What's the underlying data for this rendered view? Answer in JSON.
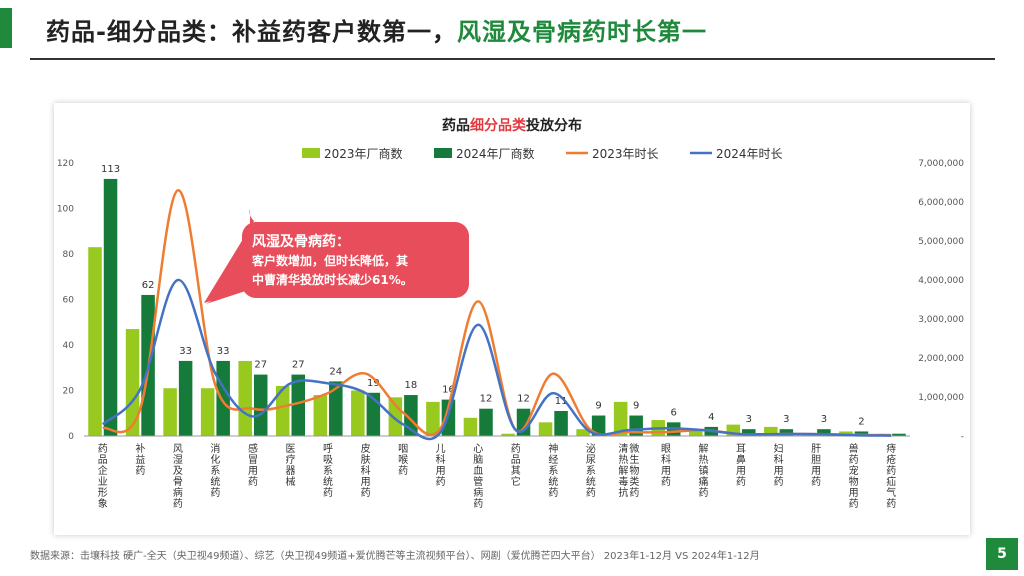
{
  "header": {
    "title_black": "药品-细分品类：补益药客户数第一，",
    "title_green": "风湿及骨病药时长第一",
    "title_green_color": "#1f8a3b"
  },
  "chart_data": {
    "type": "bar",
    "title_pre": "药品",
    "title_red": "细分品类",
    "title_post": "投放分布",
    "title_red_color": "#e03a3e",
    "legend": [
      {
        "label": "2023年厂商数",
        "color": "#97c91f",
        "kind": "bar"
      },
      {
        "label": "2024年厂商数",
        "color": "#157a3a",
        "kind": "bar"
      },
      {
        "label": "2023年时长",
        "color": "#ee7d31",
        "kind": "line"
      },
      {
        "label": "2024年时长",
        "color": "#4472c4",
        "kind": "line"
      }
    ],
    "categories": [
      "药品企业形象",
      "补益药",
      "风湿及骨病药",
      "消化系统药",
      "感冒用药",
      "医疗器械",
      "呼吸系统药",
      "皮肤科用药",
      "咽喉药",
      "儿科用药",
      "心脑血管病药",
      "药品其它",
      "神经系统药",
      "泌尿系统药",
      "清热解毒抗微生物类药",
      "眼科用药",
      "解热镇痛药",
      "耳鼻用药",
      "妇科用药",
      "肝胆用药",
      "兽药宠物用药",
      "痔疮药疝气药"
    ],
    "series": [
      {
        "name": "2023年厂商数",
        "axis": "left",
        "type": "bar",
        "color": "#97c91f",
        "values": [
          83,
          47,
          21,
          21,
          33,
          22,
          18,
          20,
          17,
          15,
          8,
          1,
          6,
          3,
          15,
          7,
          2,
          5,
          4,
          1,
          2,
          1
        ]
      },
      {
        "name": "2024年厂商数",
        "axis": "left",
        "type": "bar",
        "color": "#157a3a",
        "values": [
          113,
          62,
          33,
          33,
          27,
          27,
          24,
          19,
          18,
          16,
          12,
          12,
          11,
          9,
          9,
          6,
          4,
          3,
          3,
          3,
          2,
          1
        ]
      },
      {
        "name": "2023年时长",
        "axis": "right",
        "type": "line",
        "color": "#ee7d31",
        "values": [
          200000,
          700000,
          6300000,
          1300000,
          700000,
          800000,
          1100000,
          1600000,
          600000,
          200000,
          3450000,
          150000,
          1600000,
          150000,
          100000,
          100000,
          150000,
          50000,
          50000,
          50000,
          30000,
          20000
        ]
      },
      {
        "name": "2024年时长",
        "axis": "right",
        "type": "line",
        "color": "#4472c4",
        "values": [
          300000,
          1200000,
          4000000,
          1600000,
          500000,
          1350000,
          1350000,
          1100000,
          300000,
          100000,
          2850000,
          150000,
          1100000,
          100000,
          150000,
          200000,
          150000,
          50000,
          50000,
          50000,
          20000,
          10000
        ]
      }
    ],
    "data_labels": [
      "113",
      "62",
      "33",
      "33",
      "27",
      "27",
      "24",
      "19",
      "18",
      "16",
      "12",
      "12",
      "11",
      "9",
      "9",
      "6",
      "4",
      "3",
      "3",
      "3",
      "2",
      ""
    ],
    "ylim_left": [
      0,
      120
    ],
    "yticks_left": [
      0,
      20,
      40,
      60,
      80,
      100,
      120
    ],
    "ylim_right": [
      0,
      7000000
    ],
    "yticks_right": [
      "-",
      "1,000,000",
      "2,000,000",
      "3,000,000",
      "4,000,000",
      "5,000,000",
      "6,000,000",
      "7,000,000"
    ],
    "grid": false,
    "legend_position": "top",
    "callout": {
      "line1": "风湿及骨病药：",
      "line2": "客户数增加，但时长降低，其",
      "line3": "中曹清华投放时长减少61%。",
      "color": "#e84d5b"
    }
  },
  "footer": {
    "source": "数据来源：击壤科技 硬广-全天（央卫视49频道）、综艺（央卫视49频道+爱优腾芒等主流视频平台）、网剧（爱优腾芒四大平台） 2023年1-12月 VS 2024年1-12月",
    "page_number": "5",
    "badge_color": "#1f8a3b"
  }
}
